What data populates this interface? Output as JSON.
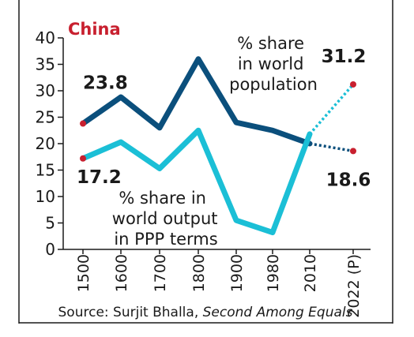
{
  "chart_data": {
    "type": "line",
    "title": "China",
    "x": [
      "1500",
      "1600",
      "1700",
      "1800",
      "1900",
      "1980",
      "2010",
      "2022 (P)"
    ],
    "ylim": [
      0,
      40
    ],
    "yticks": [
      0,
      5,
      10,
      15,
      20,
      25,
      30,
      35,
      40
    ],
    "grid": false,
    "series": [
      {
        "name": "% share in world population",
        "name_lines": [
          "% share",
          "in world",
          "population"
        ],
        "values": [
          23.8,
          28.8,
          23.0,
          36.0,
          24.0,
          22.5,
          20.0,
          18.6
        ],
        "color": "#0b4f7c",
        "projected_from_index": 6
      },
      {
        "name": "% share in world output in PPP terms",
        "name_lines": [
          "% share in",
          "world output",
          "in PPP terms"
        ],
        "values": [
          17.2,
          20.3,
          15.3,
          22.5,
          5.5,
          3.2,
          21.8,
          31.2
        ],
        "color": "#1bbfd6",
        "projected_from_index": 6
      }
    ],
    "annotations": [
      {
        "text": "23.8",
        "series": 0,
        "index": 0
      },
      {
        "text": "17.2",
        "series": 1,
        "index": 0
      },
      {
        "text": "31.2",
        "series": 1,
        "index": 7
      },
      {
        "text": "18.6",
        "series": 0,
        "index": 7
      }
    ],
    "source_prefix": "Source: Surjit Bhalla, ",
    "source_title": "Second Among Equals",
    "colors": {
      "title": "#c8202f",
      "marker": "#c8202f",
      "axis": "#1a1a1a"
    }
  }
}
